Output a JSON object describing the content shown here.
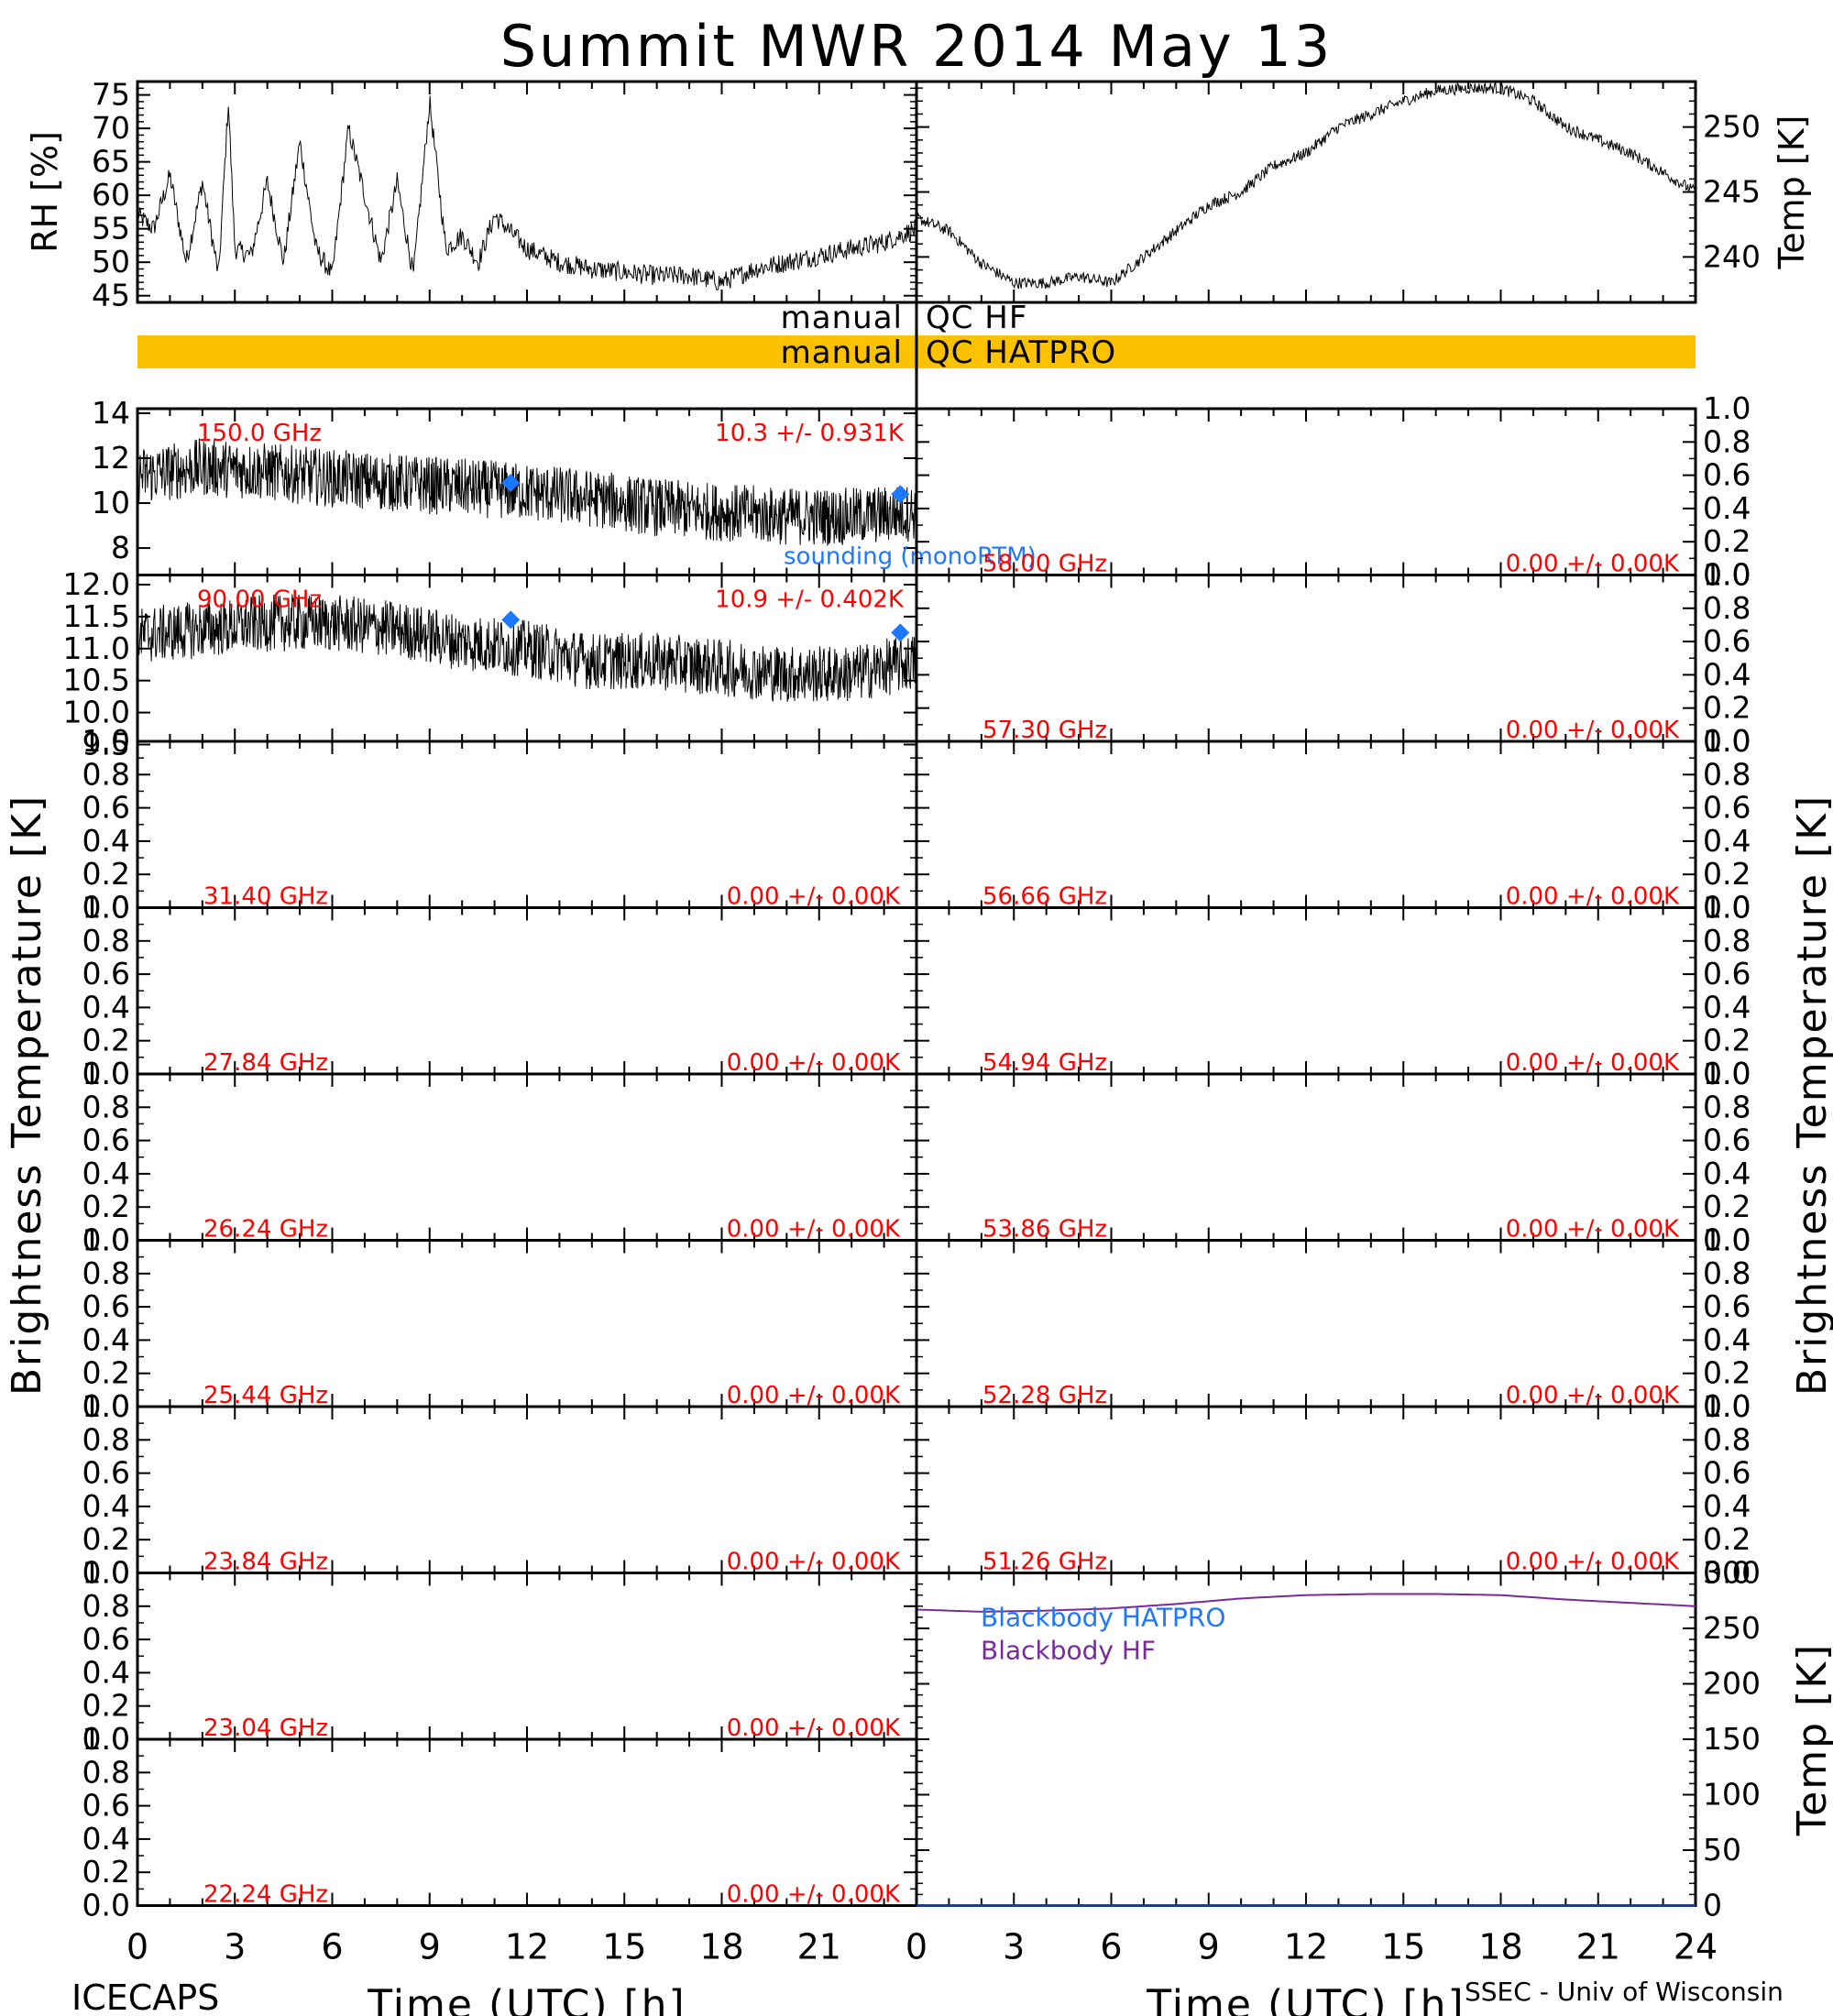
{
  "title": "Summit MWR 2014 May 13",
  "footer": {
    "left": "ICECAPS",
    "right": "SSEC - Univ of Wisconsin"
  },
  "colors": {
    "status_red": "#ff0000",
    "sounding_blue": "#1e78ff",
    "qc_bar": "#fcc200",
    "blackbody_hf": "#7a2a9a",
    "series_black": "#000000"
  },
  "qc": {
    "hf_left": "manual",
    "hf_right": "QC HF",
    "hatpro_left": "manual",
    "hatpro_right": "QC HATPRO"
  },
  "x_axis": {
    "label": "Time (UTC) [h]",
    "ticks": [
      "0",
      "3",
      "6",
      "9",
      "12",
      "15",
      "18",
      "21",
      "24"
    ],
    "range": [
      0,
      24
    ]
  },
  "axis_titles": {
    "rh": "RH [%]",
    "temp": "Temp [K]",
    "tb_left": "Brightness Temperature [K]",
    "tb_right": "Brightness Temperature [K]",
    "bb_temp": "Temp [K]"
  },
  "tb_ticks": [
    "0.0",
    "0.2",
    "0.4",
    "0.6",
    "0.8",
    "1.0"
  ],
  "chart_data": [
    {
      "type": "line",
      "panel": "rh",
      "ylabel": "RH [%]",
      "ylim": [
        44,
        77
      ],
      "yticks": [
        "45",
        "50",
        "55",
        "60",
        "65",
        "70",
        "75"
      ],
      "x": [
        0,
        0.5,
        1,
        1.5,
        2,
        2.5,
        2.8,
        3,
        3.5,
        4,
        4.5,
        5,
        5.5,
        6,
        6.5,
        7,
        7.5,
        8,
        8.5,
        9,
        9.5,
        10,
        10.5,
        11,
        12,
        13,
        14,
        15,
        16,
        17,
        18,
        19,
        20,
        21,
        22,
        23,
        24
      ],
      "values": [
        57,
        55,
        63,
        50,
        62,
        48,
        74,
        52,
        51,
        62,
        50,
        68,
        52,
        48,
        70,
        60,
        50,
        62,
        48,
        74,
        52,
        54,
        50,
        57,
        52,
        50,
        49,
        48.5,
        48,
        48,
        47,
        49,
        50,
        51,
        52,
        53,
        55
      ]
    },
    {
      "type": "line",
      "panel": "temp",
      "ylabel": "Temp [K]",
      "ylim": [
        236.5,
        253.5
      ],
      "yticks": [
        "240",
        "245",
        "250"
      ],
      "x": [
        0,
        1,
        2,
        3,
        4,
        5,
        6,
        7,
        8,
        9,
        10,
        11,
        12,
        13,
        14,
        15,
        16,
        17,
        18,
        19,
        20,
        21,
        22,
        23,
        24
      ],
      "values": [
        243,
        242,
        239.5,
        238,
        238,
        238.5,
        238,
        240,
        242,
        244,
        245,
        247,
        248,
        250,
        251,
        252,
        252.8,
        253,
        253,
        252,
        250,
        249,
        248,
        246.5,
        245
      ]
    },
    {
      "type": "line",
      "panel": "tb",
      "channel": "150.0 GHz",
      "stat": "10.3 +/- 0.931K",
      "ylim": [
        6.8,
        14.2
      ],
      "yticks": [
        "8",
        "10",
        "12",
        "14"
      ],
      "x": [
        0,
        2,
        4,
        6,
        8,
        10,
        12,
        14,
        16,
        18,
        20,
        22,
        24
      ],
      "values": [
        11.2,
        11.6,
        11.4,
        11.1,
        10.9,
        10.7,
        10.5,
        10.2,
        9.8,
        9.6,
        9.4,
        9.4,
        9.6
      ],
      "sounding": {
        "x": [
          11.5,
          23.5
        ],
        "values": [
          10.9,
          10.4
        ],
        "label": "sounding (monoRTM)"
      }
    },
    {
      "type": "line",
      "panel": "tb",
      "channel": "90.00 GHz",
      "stat": "10.9 +/- 0.402K",
      "ylim": [
        9.55,
        12.15
      ],
      "yticks": [
        "9.5",
        "10.0",
        "10.5",
        "11.0",
        "11.5",
        "12.0"
      ],
      "x": [
        0,
        2,
        4,
        6,
        8,
        10,
        12,
        14,
        16,
        18,
        20,
        22,
        24
      ],
      "values": [
        11.2,
        11.3,
        11.4,
        11.4,
        11.3,
        11.1,
        11.0,
        10.8,
        10.8,
        10.7,
        10.6,
        10.6,
        10.8
      ],
      "sounding": {
        "x": [
          11.5,
          23.5
        ],
        "values": [
          11.45,
          11.25
        ]
      }
    },
    {
      "type": "line",
      "panel": "tb",
      "channel": "31.40 GHz",
      "stat": "0.00 +/- 0.00K",
      "ylim": [
        0,
        1
      ]
    },
    {
      "type": "line",
      "panel": "tb",
      "channel": "27.84 GHz",
      "stat": "0.00 +/- 0.00K",
      "ylim": [
        0,
        1
      ]
    },
    {
      "type": "line",
      "panel": "tb",
      "channel": "26.24 GHz",
      "stat": "0.00 +/- 0.00K",
      "ylim": [
        0,
        1
      ]
    },
    {
      "type": "line",
      "panel": "tb",
      "channel": "25.44 GHz",
      "stat": "0.00 +/- 0.00K",
      "ylim": [
        0,
        1
      ]
    },
    {
      "type": "line",
      "panel": "tb",
      "channel": "23.84 GHz",
      "stat": "0.00 +/- 0.00K",
      "ylim": [
        0,
        1
      ]
    },
    {
      "type": "line",
      "panel": "tb",
      "channel": "23.04 GHz",
      "stat": "0.00 +/- 0.00K",
      "ylim": [
        0,
        1
      ]
    },
    {
      "type": "line",
      "panel": "tb",
      "channel": "22.24 GHz",
      "stat": "0.00 +/- 0.00K",
      "ylim": [
        0,
        1
      ]
    },
    {
      "type": "line",
      "panel": "tb",
      "channel": "58.00 GHz",
      "stat": "0.00 +/- 0.00K",
      "ylim": [
        0,
        1
      ]
    },
    {
      "type": "line",
      "panel": "tb",
      "channel": "57.30 GHz",
      "stat": "0.00 +/- 0.00K",
      "ylim": [
        0,
        1
      ]
    },
    {
      "type": "line",
      "panel": "tb",
      "channel": "56.66 GHz",
      "stat": "0.00 +/- 0.00K",
      "ylim": [
        0,
        1
      ]
    },
    {
      "type": "line",
      "panel": "tb",
      "channel": "54.94 GHz",
      "stat": "0.00 +/- 0.00K",
      "ylim": [
        0,
        1
      ]
    },
    {
      "type": "line",
      "panel": "tb",
      "channel": "53.86 GHz",
      "stat": "0.00 +/- 0.00K",
      "ylim": [
        0,
        1
      ]
    },
    {
      "type": "line",
      "panel": "tb",
      "channel": "52.28 GHz",
      "stat": "0.00 +/- 0.00K",
      "ylim": [
        0,
        1
      ]
    },
    {
      "type": "line",
      "panel": "tb",
      "channel": "51.26 GHz",
      "stat": "0.00 +/- 0.00K",
      "ylim": [
        0,
        1
      ]
    },
    {
      "type": "line",
      "panel": "blackbody",
      "ylabel": "Temp [K]",
      "ylim": [
        0,
        300
      ],
      "yticks": [
        "0",
        "50",
        "100",
        "150",
        "200",
        "250",
        "300"
      ],
      "series": [
        {
          "name": "Blackbody HATPRO",
          "x": [
            0,
            24
          ],
          "values": [
            0,
            0
          ]
        },
        {
          "name": "Blackbody HF",
          "x": [
            0,
            2,
            4,
            6,
            8,
            10,
            12,
            14,
            16,
            18,
            20,
            22,
            24
          ],
          "values": [
            267,
            265,
            266,
            268,
            272,
            277,
            280,
            281,
            281,
            280,
            276,
            273,
            270
          ]
        }
      ]
    }
  ]
}
